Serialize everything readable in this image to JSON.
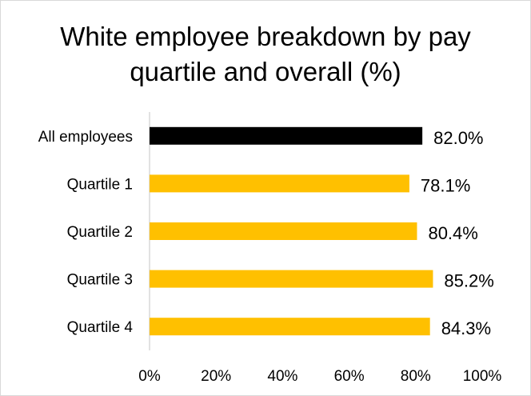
{
  "chart_data": {
    "type": "bar",
    "orientation": "horizontal",
    "title": "White employee breakdown by pay quartile and overall (%)",
    "categories": [
      "All employees",
      "Quartile 1",
      "Quartile 2",
      "Quartile 3",
      "Quartile 4"
    ],
    "values": [
      82.0,
      78.1,
      80.4,
      85.2,
      84.3
    ],
    "value_labels": [
      "82.0%",
      "78.1%",
      "80.4%",
      "85.2%",
      "84.3%"
    ],
    "bar_colors": [
      "#000000",
      "#ffc000",
      "#ffc000",
      "#ffc000",
      "#ffc000"
    ],
    "xlim": [
      0,
      100
    ],
    "xticks": [
      0,
      20,
      40,
      60,
      80,
      100
    ],
    "xtick_labels": [
      "0%",
      "20%",
      "40%",
      "60%",
      "80%",
      "100%"
    ],
    "xlabel": "",
    "ylabel": "",
    "grid": false,
    "legend": "none"
  }
}
